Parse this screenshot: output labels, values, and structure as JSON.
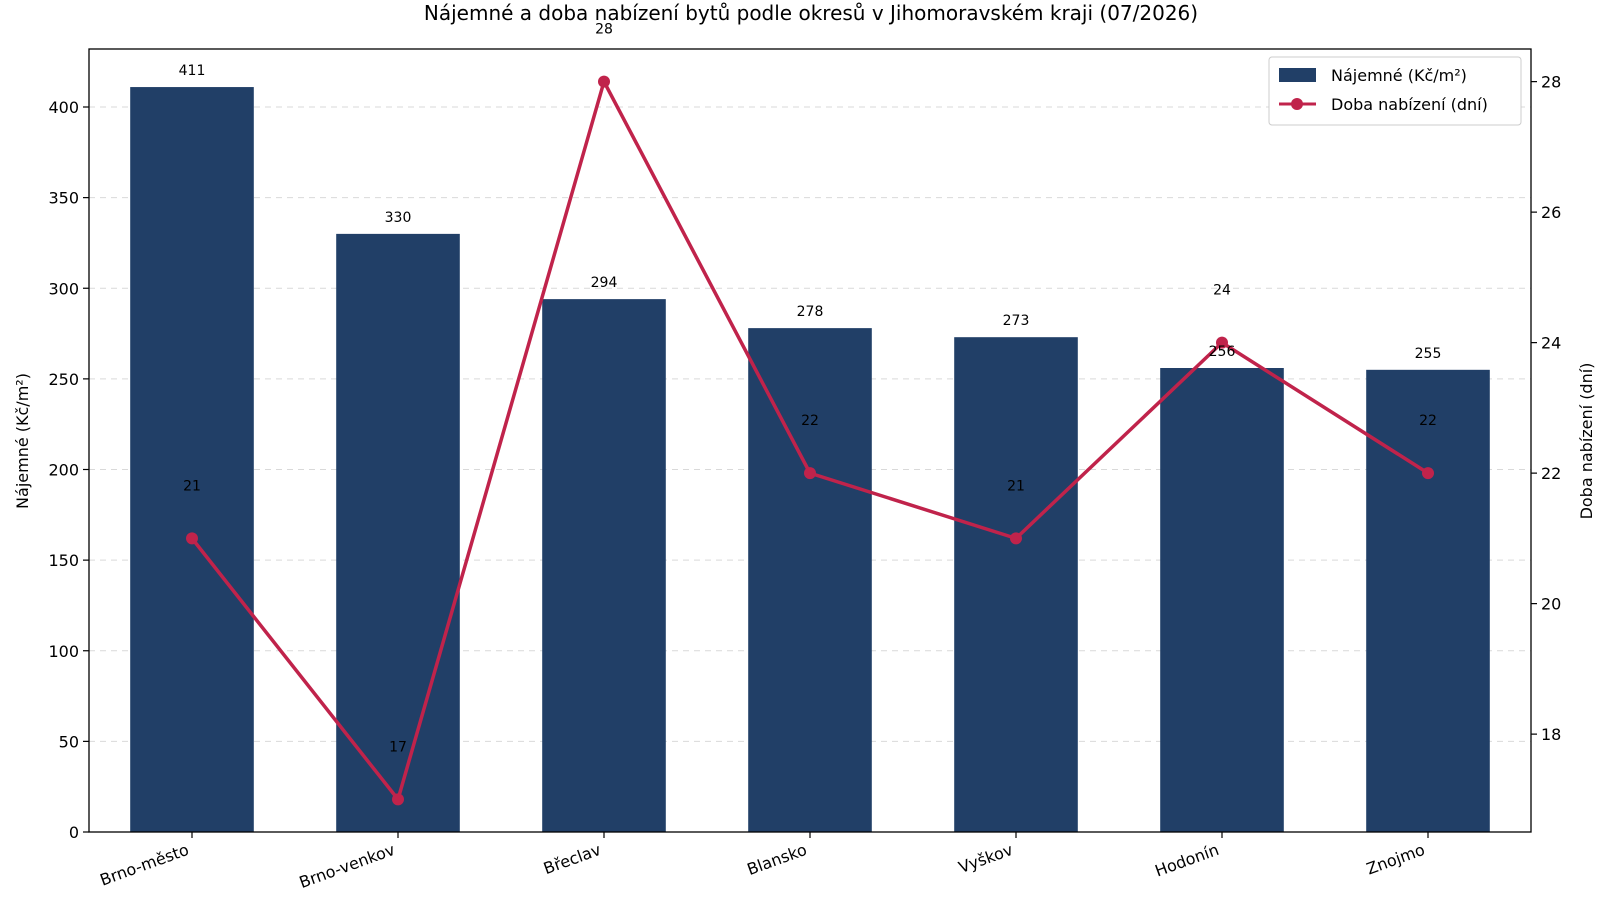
{
  "chart_data": {
    "type": "bar+line",
    "title": "Nájemné a doba nabízení bytů podle okresů v Jihomoravském kraji (07/2026)",
    "categories": [
      "Brno-město",
      "Brno-venkov",
      "Břeclav",
      "Blansko",
      "Vyškov",
      "Hodonín",
      "Znojmo"
    ],
    "series": [
      {
        "name": "Nájemné (Kč/m²)",
        "type": "bar",
        "axis": "left",
        "values": [
          411,
          330,
          294,
          278,
          273,
          256,
          255
        ],
        "color": "#213f67"
      },
      {
        "name": "Doba nabízení (dní)",
        "type": "line",
        "axis": "right",
        "values": [
          21,
          17,
          28,
          22,
          21,
          24,
          22
        ],
        "color": "#c0234b"
      }
    ],
    "ylabel": "Nájemné (Kč/m²)",
    "ylabel_right": "Doba nabízení (dní)",
    "ylim": [
      0,
      432
    ],
    "ylim_right": [
      16.5,
      28.5
    ],
    "yticks": [
      0,
      50,
      100,
      150,
      200,
      250,
      300,
      350,
      400
    ],
    "yticks_right": [
      18,
      20,
      22,
      24,
      26,
      28
    ],
    "grid": "horizontal dashed",
    "legend": "top-right"
  }
}
